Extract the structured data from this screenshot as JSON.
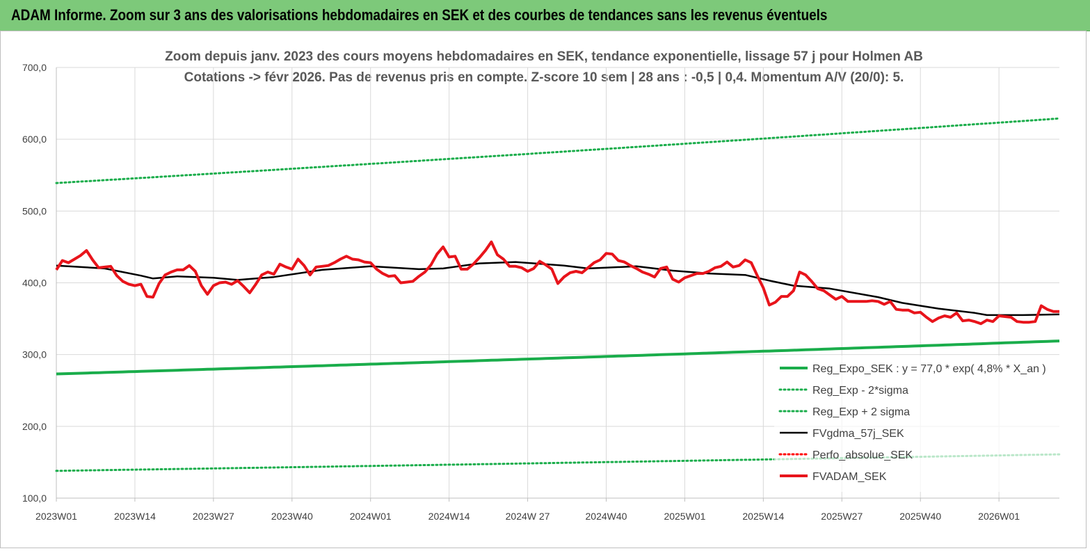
{
  "banner": {
    "title": "ADAM Informe. Zoom sur 3 ans des valorisations hebdomadaires en SEK et des courbes de tendances sans les revenus éventuels",
    "color": "#7dc97a"
  },
  "chart_data": {
    "type": "line",
    "title": "Zoom depuis janv. 2023 des cours moyens hebdomadaires en SEK, tendance exponentielle, lissage 57 j pour Holmen AB",
    "subtitle": "Cotations -> févr 2026. Pas de revenus pris en compte. Z-score 10 sem  | 28 ans : -0,5 | 0,4. Momentum A/V (20/0): 5.",
    "xlabel": "",
    "ylabel": "",
    "ylim": [
      100,
      700
    ],
    "y_ticks": [
      "100,0",
      "200,0",
      "300,0",
      "400,0",
      "500,0",
      "600,0",
      "700,0"
    ],
    "x_ticks": [
      "2023W01",
      "2023W14",
      "2023W27",
      "2023W40",
      "2024W01",
      "2024W14",
      "2024W 27",
      "2024W40",
      "2025W01",
      "2025W14",
      "2025W27",
      "2025W40",
      "2026W01"
    ],
    "x_tick_index": [
      0,
      13,
      26,
      39,
      52,
      65,
      78,
      91,
      104,
      117,
      130,
      143,
      156
    ],
    "n_weeks": 167,
    "grid": "horizontal",
    "legend_position": "bottom-right",
    "series": [
      {
        "name": "Reg_Expo_SEK : y = 77,0 * exp( 4,8% *  X_an )",
        "style": "solid-thick",
        "color": "#1aad4b",
        "start": 273,
        "end": 319
      },
      {
        "name": "Reg_Exp - 2*sigma",
        "style": "dotted",
        "color": "#1aad4b",
        "start": 138,
        "end": 161
      },
      {
        "name": "Reg_Exp + 2 sigma",
        "style": "dotted",
        "color": "#1aad4b",
        "start": 539,
        "end": 629
      },
      {
        "name": "FVgdma_57j_SEK",
        "style": "solid",
        "color": "#000000",
        "points": [
          [
            0,
            424
          ],
          [
            8,
            420
          ],
          [
            14,
            410
          ],
          [
            16,
            406
          ],
          [
            20,
            409
          ],
          [
            26,
            407
          ],
          [
            30,
            404
          ],
          [
            36,
            408
          ],
          [
            44,
            418
          ],
          [
            52,
            423
          ],
          [
            60,
            419
          ],
          [
            64,
            420
          ],
          [
            70,
            427
          ],
          [
            76,
            429
          ],
          [
            84,
            424
          ],
          [
            88,
            420
          ],
          [
            96,
            423
          ],
          [
            102,
            417
          ],
          [
            108,
            413
          ],
          [
            114,
            411
          ],
          [
            118,
            403
          ],
          [
            122,
            396
          ],
          [
            128,
            392
          ],
          [
            136,
            380
          ],
          [
            140,
            372
          ],
          [
            146,
            364
          ],
          [
            152,
            358
          ],
          [
            154,
            355
          ],
          [
            160,
            355
          ],
          [
            166,
            356
          ]
        ]
      },
      {
        "name": "Perfo_absolue_SEK",
        "style": "dotted",
        "color": "#ff0000",
        "points": []
      },
      {
        "name": "FVADAM_SEK",
        "style": "solid-thick",
        "color": "#e8141b",
        "points": [
          [
            0,
            418
          ],
          [
            1,
            431
          ],
          [
            2,
            428
          ],
          [
            3,
            433
          ],
          [
            4,
            438
          ],
          [
            5,
            445
          ],
          [
            6,
            432
          ],
          [
            7,
            421
          ],
          [
            8,
            422
          ],
          [
            9,
            423
          ],
          [
            10,
            410
          ],
          [
            11,
            402
          ],
          [
            12,
            398
          ],
          [
            13,
            396
          ],
          [
            14,
            398
          ],
          [
            15,
            381
          ],
          [
            16,
            380
          ],
          [
            17,
            399
          ],
          [
            18,
            411
          ],
          [
            19,
            415
          ],
          [
            20,
            418
          ],
          [
            21,
            418
          ],
          [
            22,
            424
          ],
          [
            23,
            416
          ],
          [
            24,
            396
          ],
          [
            25,
            384
          ],
          [
            26,
            396
          ],
          [
            27,
            400
          ],
          [
            28,
            401
          ],
          [
            29,
            398
          ],
          [
            30,
            403
          ],
          [
            31,
            395
          ],
          [
            32,
            386
          ],
          [
            33,
            398
          ],
          [
            34,
            411
          ],
          [
            35,
            415
          ],
          [
            36,
            412
          ],
          [
            37,
            426
          ],
          [
            38,
            422
          ],
          [
            39,
            419
          ],
          [
            40,
            433
          ],
          [
            41,
            424
          ],
          [
            42,
            411
          ],
          [
            43,
            422
          ],
          [
            44,
            423
          ],
          [
            45,
            424
          ],
          [
            46,
            428
          ],
          [
            47,
            433
          ],
          [
            48,
            437
          ],
          [
            49,
            433
          ],
          [
            50,
            432
          ],
          [
            51,
            429
          ],
          [
            52,
            428
          ],
          [
            53,
            419
          ],
          [
            54,
            413
          ],
          [
            55,
            409
          ],
          [
            56,
            410
          ],
          [
            57,
            400
          ],
          [
            58,
            401
          ],
          [
            59,
            402
          ],
          [
            60,
            409
          ],
          [
            61,
            415
          ],
          [
            62,
            425
          ],
          [
            63,
            440
          ],
          [
            64,
            450
          ],
          [
            65,
            436
          ],
          [
            66,
            437
          ],
          [
            67,
            419
          ],
          [
            68,
            419
          ],
          [
            69,
            426
          ],
          [
            70,
            435
          ],
          [
            71,
            445
          ],
          [
            72,
            457
          ],
          [
            73,
            439
          ],
          [
            74,
            433
          ],
          [
            75,
            423
          ],
          [
            76,
            423
          ],
          [
            77,
            421
          ],
          [
            78,
            416
          ],
          [
            79,
            420
          ],
          [
            80,
            430
          ],
          [
            81,
            425
          ],
          [
            82,
            419
          ],
          [
            83,
            399
          ],
          [
            84,
            408
          ],
          [
            85,
            414
          ],
          [
            86,
            416
          ],
          [
            87,
            414
          ],
          [
            88,
            421
          ],
          [
            89,
            428
          ],
          [
            90,
            432
          ],
          [
            91,
            441
          ],
          [
            92,
            440
          ],
          [
            93,
            431
          ],
          [
            94,
            429
          ],
          [
            95,
            424
          ],
          [
            96,
            420
          ],
          [
            97,
            415
          ],
          [
            98,
            412
          ],
          [
            99,
            408
          ],
          [
            100,
            420
          ],
          [
            101,
            422
          ],
          [
            102,
            405
          ],
          [
            103,
            401
          ],
          [
            104,
            407
          ],
          [
            105,
            410
          ],
          [
            106,
            413
          ],
          [
            107,
            413
          ],
          [
            108,
            416
          ],
          [
            109,
            421
          ],
          [
            110,
            423
          ],
          [
            111,
            429
          ],
          [
            112,
            422
          ],
          [
            113,
            424
          ],
          [
            114,
            432
          ],
          [
            115,
            428
          ],
          [
            116,
            410
          ],
          [
            117,
            393
          ],
          [
            118,
            369
          ],
          [
            119,
            373
          ],
          [
            120,
            381
          ],
          [
            121,
            381
          ],
          [
            122,
            389
          ],
          [
            123,
            415
          ],
          [
            124,
            411
          ],
          [
            125,
            402
          ],
          [
            126,
            392
          ],
          [
            127,
            389
          ],
          [
            128,
            383
          ],
          [
            129,
            377
          ],
          [
            130,
            381
          ],
          [
            131,
            374
          ],
          [
            132,
            374
          ],
          [
            133,
            374
          ],
          [
            134,
            374
          ],
          [
            135,
            375
          ],
          [
            136,
            374
          ],
          [
            137,
            370
          ],
          [
            138,
            374
          ],
          [
            139,
            363
          ],
          [
            140,
            362
          ],
          [
            141,
            362
          ],
          [
            142,
            358
          ],
          [
            143,
            359
          ],
          [
            144,
            352
          ],
          [
            145,
            346
          ],
          [
            146,
            351
          ],
          [
            147,
            354
          ],
          [
            148,
            352
          ],
          [
            149,
            358
          ],
          [
            150,
            347
          ],
          [
            151,
            348
          ],
          [
            152,
            346
          ],
          [
            153,
            343
          ],
          [
            154,
            348
          ],
          [
            155,
            346
          ],
          [
            156,
            354
          ],
          [
            157,
            353
          ],
          [
            158,
            352
          ],
          [
            159,
            346
          ],
          [
            160,
            345
          ],
          [
            161,
            345
          ],
          [
            162,
            346
          ],
          [
            163,
            368
          ],
          [
            164,
            363
          ],
          [
            165,
            360
          ],
          [
            166,
            360
          ]
        ]
      }
    ]
  }
}
